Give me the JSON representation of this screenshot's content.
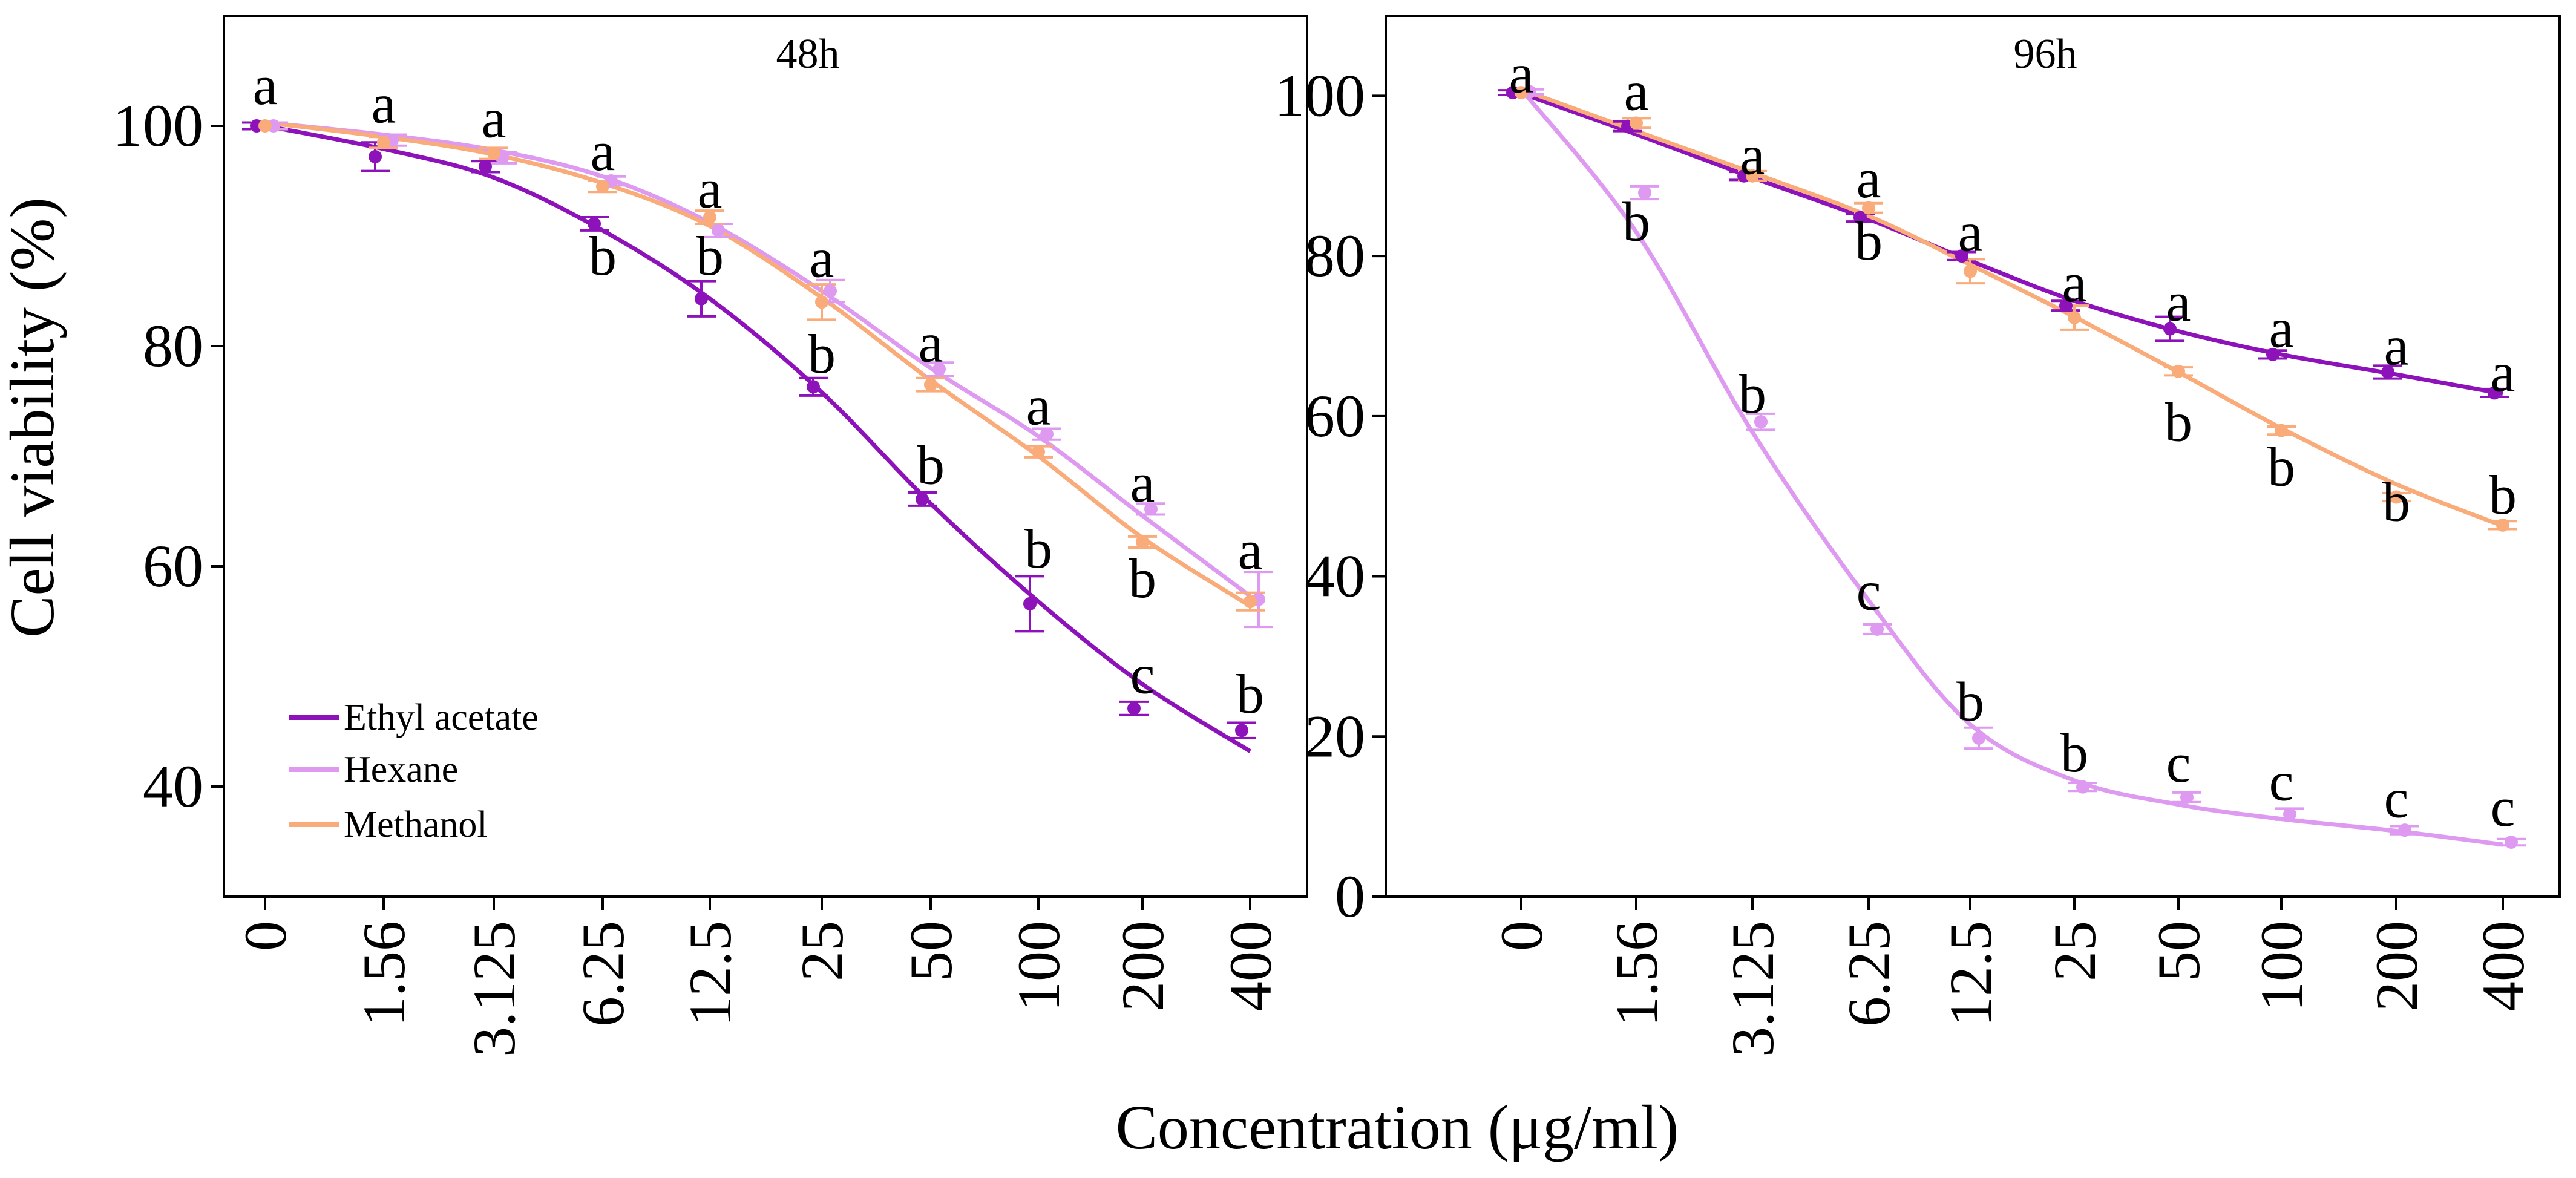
{
  "figure": {
    "ylabel": "Cell viability (%)",
    "xlabel": "Concentration (μg/ml)"
  },
  "colors": {
    "ethyl_acetate": "#8E12B9",
    "hexane": "#DE9AF0",
    "methanol": "#F9AB7A"
  },
  "legend": {
    "position": "bottom-left",
    "entries": [
      {
        "name": "Ethyl acetate",
        "color_key": "ethyl_acetate"
      },
      {
        "name": "Hexane",
        "color_key": "hexane"
      },
      {
        "name": "Methanol",
        "color_key": "methanol"
      }
    ]
  },
  "chart_data": [
    {
      "type": "scatter",
      "title": "48h",
      "categories": [
        "0",
        "1.56",
        "3.125",
        "6.25",
        "12.5",
        "25",
        "50",
        "100",
        "200",
        "400"
      ],
      "ylim": [
        30,
        110
      ],
      "yticks": [
        40,
        60,
        80,
        100
      ],
      "xlabel": "Concentration (μg/ml)",
      "ylabel": "Cell viability (%)",
      "series": [
        {
          "name": "Ethyl acetate",
          "color_key": "ethyl_acetate",
          "values": [
            100,
            97.2,
            96.3,
            91.1,
            84.3,
            76.3,
            66.1,
            56.6,
            47.1,
            45.1
          ],
          "errors": [
            0.3,
            1.3,
            0.5,
            0.6,
            1.6,
            0.8,
            0.6,
            2.5,
            0.6,
            0.7
          ],
          "fit": [
            100,
            97.9,
            95.3,
            90.5,
            84.3,
            75.8,
            65.7,
            56.8,
            49.3,
            43.2
          ]
        },
        {
          "name": "Hexane",
          "color_key": "hexane",
          "values": [
            100,
            98.7,
            97.1,
            95.0,
            90.5,
            85.0,
            77.9,
            72.0,
            65.2,
            57.0
          ],
          "errors": [
            0.3,
            0.5,
            0.5,
            0.4,
            0.6,
            1.0,
            0.6,
            0.5,
            0.5,
            2.5
          ],
          "fit": [
            100.3,
            99.2,
            97.8,
            95.4,
            91.2,
            85.0,
            78.0,
            71.8,
            64.6,
            57.3
          ]
        },
        {
          "name": "Methanol",
          "color_key": "methanol",
          "values": [
            100,
            98.5,
            97.5,
            94.5,
            91.7,
            84.0,
            76.5,
            70.4,
            62.2,
            56.8
          ],
          "errors": [
            0.3,
            0.5,
            0.5,
            0.5,
            0.6,
            1.6,
            0.6,
            0.5,
            0.5,
            0.8
          ],
          "fit": [
            100.3,
            99.0,
            97.4,
            94.8,
            90.9,
            84.4,
            76.9,
            70.0,
            62.6,
            56.4
          ]
        }
      ],
      "annotations": [
        {
          "x": "0",
          "y": 103.2,
          "text": "a"
        },
        {
          "x": "1.56",
          "y": 101.5,
          "text": "a"
        },
        {
          "x": "3.125",
          "y": 100.2,
          "text": "a"
        },
        {
          "x": "6.25",
          "y": 97.2,
          "text": "a"
        },
        {
          "x": "6.25",
          "y": 87.7,
          "text": "b"
        },
        {
          "x": "12.5",
          "y": 93.8,
          "text": "a"
        },
        {
          "x": "12.5",
          "y": 87.7,
          "text": "b"
        },
        {
          "x": "25",
          "y": 87.5,
          "text": "a"
        },
        {
          "x": "25",
          "y": 78.8,
          "text": "b"
        },
        {
          "x": "50",
          "y": 79.8,
          "text": "a"
        },
        {
          "x": "50",
          "y": 68.7,
          "text": "b"
        },
        {
          "x": "100",
          "y": 74.1,
          "text": "a"
        },
        {
          "x": "100",
          "y": 61.1,
          "text": "b"
        },
        {
          "x": "200",
          "y": 67.1,
          "text": "a"
        },
        {
          "x": "200",
          "y": 58.4,
          "text": "b"
        },
        {
          "x": "200",
          "y": 49.7,
          "text": "c"
        },
        {
          "x": "400",
          "y": 61.0,
          "text": "a"
        },
        {
          "x": "400",
          "y": 47.9,
          "text": "b"
        }
      ]
    },
    {
      "type": "scatter",
      "title": "96h",
      "categories": [
        "0",
        "1.56",
        "3.125",
        "6.25",
        "12.5",
        "25",
        "50",
        "100",
        "200",
        "400"
      ],
      "ylim": [
        0,
        110
      ],
      "yticks": [
        0,
        20,
        40,
        60,
        80,
        100
      ],
      "xlabel": "Concentration (μg/ml)",
      "ylabel": "Cell viability (%)",
      "series": [
        {
          "name": "Ethyl acetate",
          "color_key": "ethyl_acetate",
          "values": [
            100.4,
            96.2,
            90.0,
            84.8,
            80.0,
            73.8,
            70.9,
            67.7,
            65.5,
            62.9
          ],
          "errors": [
            0.3,
            0.6,
            0.5,
            0.5,
            0.5,
            0.6,
            1.5,
            0.5,
            0.8,
            0.5
          ],
          "fit": [
            100.3,
            95.2,
            89.8,
            84.6,
            79.4,
            74.4,
            70.6,
            67.7,
            65.2,
            62.8
          ]
        },
        {
          "name": "Hexane",
          "color_key": "hexane",
          "values": [
            100.5,
            87.9,
            59.3,
            33.4,
            19.8,
            13.7,
            12.4,
            10.3,
            8.3,
            6.8
          ],
          "errors": [
            0.3,
            0.8,
            1.0,
            0.6,
            1.3,
            0.5,
            0.6,
            0.7,
            0.5,
            0.4
          ],
          "fit": [
            100.8,
            83.0,
            58.0,
            37.0,
            21.5,
            14.5,
            11.5,
            9.7,
            8.2,
            6.5
          ]
        },
        {
          "name": "Methanol",
          "color_key": "methanol",
          "values": [
            100.4,
            96.6,
            90.0,
            86.0,
            78.1,
            72.3,
            65.6,
            58.2,
            49.9,
            46.4
          ],
          "errors": [
            0.3,
            0.6,
            0.6,
            0.6,
            1.5,
            1.5,
            0.5,
            0.5,
            0.5,
            0.5
          ],
          "fit": [
            100.8,
            95.6,
            90.4,
            85.0,
            78.9,
            72.4,
            65.5,
            58.5,
            51.5,
            46.3
          ]
        }
      ],
      "annotations": [
        {
          "x": "0",
          "y": 102.1,
          "text": "a"
        },
        {
          "x": "1.56",
          "y": 99.9,
          "text": "a"
        },
        {
          "x": "1.56",
          "y": 83.6,
          "text": "b"
        },
        {
          "x": "3.125",
          "y": 91.9,
          "text": "a"
        },
        {
          "x": "3.125",
          "y": 62.1,
          "text": "b"
        },
        {
          "x": "6.25",
          "y": 89.0,
          "text": "a"
        },
        {
          "x": "6.25",
          "y": 81.2,
          "text": "b"
        },
        {
          "x": "6.25",
          "y": 37.5,
          "text": "c"
        },
        {
          "x": "12.5",
          "y": 82.3,
          "text": "a"
        },
        {
          "x": "12.5",
          "y": 23.7,
          "text": "b"
        },
        {
          "x": "25",
          "y": 76.0,
          "text": "a"
        },
        {
          "x": "25",
          "y": 17.3,
          "text": "b"
        },
        {
          "x": "50",
          "y": 73.6,
          "text": "a"
        },
        {
          "x": "50",
          "y": 58.6,
          "text": "b"
        },
        {
          "x": "50",
          "y": 16.0,
          "text": "c"
        },
        {
          "x": "100",
          "y": 70.3,
          "text": "a"
        },
        {
          "x": "100",
          "y": 53.0,
          "text": "b"
        },
        {
          "x": "100",
          "y": 13.7,
          "text": "c"
        },
        {
          "x": "200",
          "y": 68.1,
          "text": "a"
        },
        {
          "x": "200",
          "y": 48.6,
          "text": "b"
        },
        {
          "x": "200",
          "y": 11.6,
          "text": "c"
        },
        {
          "x": "400",
          "y": 64.8,
          "text": "a"
        },
        {
          "x": "400",
          "y": 49.5,
          "text": "b"
        },
        {
          "x": "400",
          "y": 10.5,
          "text": "c"
        }
      ]
    }
  ]
}
